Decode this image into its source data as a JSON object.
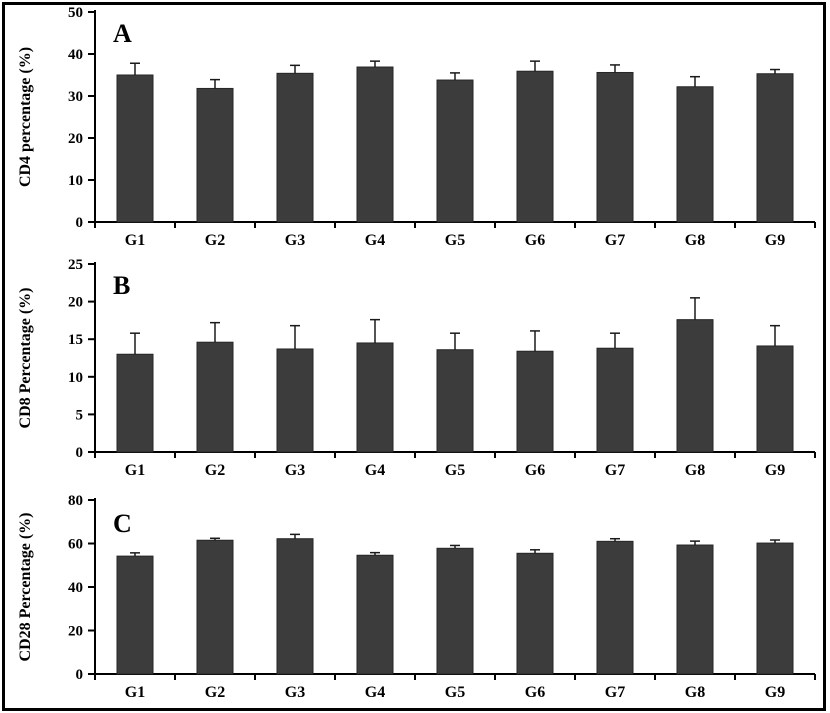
{
  "colors": {
    "bar_fill": "#3c3c3c",
    "bar_outline": "#262626",
    "error_bar": "#1a1a1a",
    "axis": "#000000",
    "text": "#000000",
    "border": "#000000",
    "background": "#ffffff"
  },
  "chart_data": [
    {
      "type": "bar",
      "panel_label": "A",
      "ylabel": "CD4 percentage (%)",
      "categories": [
        "G1",
        "G2",
        "G3",
        "G4",
        "G5",
        "G6",
        "G7",
        "G8",
        "G9"
      ],
      "values": [
        35.0,
        31.8,
        35.4,
        36.9,
        33.8,
        35.9,
        35.6,
        32.2,
        35.3
      ],
      "errors_plus": [
        2.8,
        2.1,
        1.9,
        1.4,
        1.7,
        2.4,
        1.8,
        2.4,
        1.0
      ],
      "ylim": [
        0,
        50
      ],
      "yticks": [
        0,
        10,
        20,
        30,
        40,
        50
      ],
      "grid": false,
      "legend": null
    },
    {
      "type": "bar",
      "panel_label": "B",
      "ylabel": "CD8 Percentage (%)",
      "categories": [
        "G1",
        "G2",
        "G3",
        "G4",
        "G5",
        "G6",
        "G7",
        "G8",
        "G9"
      ],
      "values": [
        13.0,
        14.6,
        13.7,
        14.5,
        13.6,
        13.4,
        13.8,
        17.6,
        14.1
      ],
      "errors_plus": [
        2.8,
        2.6,
        3.1,
        3.1,
        2.2,
        2.7,
        2.0,
        2.9,
        2.7
      ],
      "ylim": [
        0,
        25
      ],
      "yticks": [
        0,
        5,
        10,
        15,
        20,
        25
      ],
      "grid": false,
      "legend": null
    },
    {
      "type": "bar",
      "panel_label": "C",
      "ylabel": "CD28 Percentage (%)",
      "categories": [
        "G1",
        "G2",
        "G3",
        "G4",
        "G5",
        "G6",
        "G7",
        "G8",
        "G9"
      ],
      "values": [
        54.2,
        61.5,
        62.2,
        54.6,
        57.8,
        55.5,
        61.0,
        59.3,
        60.2
      ],
      "errors_plus": [
        1.5,
        0.9,
        2.0,
        1.2,
        1.3,
        1.6,
        1.2,
        1.8,
        1.4
      ],
      "ylim": [
        0,
        80
      ],
      "yticks": [
        0,
        20,
        40,
        60,
        80
      ],
      "grid": false,
      "legend": null
    }
  ]
}
